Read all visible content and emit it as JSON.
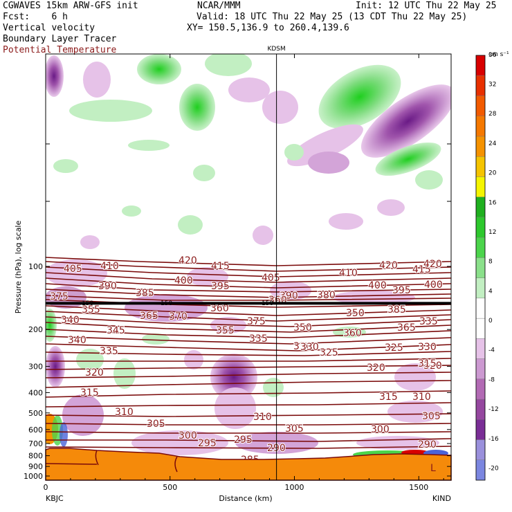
{
  "header": {
    "model": "CGWAVES 15km ARW-GFS init",
    "org": "NCAR/MMM",
    "init": "Init: 12 UTC Thu 22 May 25",
    "fcst": "Fcst:    6 h",
    "valid": "Valid: 18 UTC Thu 22 May 25 (13 CDT Thu 22 May 25)",
    "field1": "Vertical velocity",
    "field2": "Boundary Layer Tracer",
    "field3": "Potential Temperature",
    "xy": "XY= 150.5,136.9 to 260.4,139.6"
  },
  "colors": {
    "theta_contour": "#7a0a0a",
    "field3_text": "#8b1a1a",
    "terrain": "#f58a0a",
    "tropopause_line": "#000000"
  },
  "chart_data": {
    "type": "heatmap",
    "ylabel": "Pressure (hPa), log scale",
    "xlabel": "Distance (km)",
    "x_ticks": [
      0,
      500,
      1000,
      1500
    ],
    "x_range": [
      0,
      1630
    ],
    "y_ticks": [
      100,
      200,
      300,
      400,
      500,
      600,
      700,
      800,
      900,
      1000
    ],
    "y_scale": "log",
    "left_station": "KBJC",
    "right_station": "KIND",
    "marker_station": "KDSM",
    "marker_x": 928,
    "units": "cm s⁻¹",
    "colorbar_levels": [
      -20,
      -16,
      -12,
      -8,
      -4,
      0,
      4,
      8,
      12,
      16,
      20,
      24,
      28,
      32,
      36
    ],
    "colorbar_colors": [
      "#7b86e0",
      "#9a90dc",
      "#7a2e96",
      "#95479f",
      "#b26ab4",
      "#cc99d1",
      "#e6c2e8",
      "#ffffff",
      "#ffffff",
      "#c2efc2",
      "#8ae08a",
      "#4bd44b",
      "#2dc82d",
      "#1fb01f",
      "#f5f500",
      "#f5c400",
      "#f59200",
      "#f57800",
      "#f25a00",
      "#e83000",
      "#d80000"
    ],
    "tropopause_label": "150",
    "tropopause_pressure": 150,
    "theta_labels": [
      "405",
      "410",
      "420",
      "415",
      "420",
      "415",
      "420",
      "390",
      "400",
      "395",
      "405",
      "410",
      "400",
      "395",
      "400",
      "375",
      "385",
      "390",
      "380",
      "385",
      "360",
      "355",
      "365",
      "370",
      "360",
      "375",
      "350",
      "340",
      "345",
      "355",
      "350",
      "360",
      "365",
      "335",
      "340",
      "335",
      "330",
      "325",
      "330",
      "335",
      "330",
      "325",
      "320",
      "320",
      "320",
      "315",
      "315",
      "315",
      "310",
      "310",
      "310",
      "305",
      "305",
      "305",
      "300",
      "300",
      "295",
      "295",
      "290",
      "290",
      "285"
    ],
    "overlay_marker": "L"
  }
}
